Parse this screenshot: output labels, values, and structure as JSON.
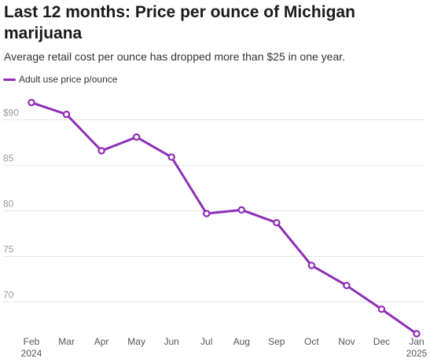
{
  "header": {
    "title": "Last 12 months: Price per ounce of Michigan marijuana",
    "subtitle": "Average retail cost per ounce has dropped more than $25 in one year."
  },
  "colors": {
    "series": "#8e2fb5",
    "grid": "#e6e6e6",
    "tick": "#9a9a9a"
  },
  "chart_data": {
    "type": "line",
    "title": "Last 12 months: Price per ounce of Michigan marijuana",
    "subtitle": "Average retail cost per ounce has dropped more than $25 in one year.",
    "x": [
      "Feb 2024",
      "Mar",
      "Apr",
      "May",
      "Jun",
      "Jul",
      "Aug",
      "Sep",
      "Oct",
      "Nov",
      "Dec",
      "Jan 2025"
    ],
    "x_tick_labels": [
      [
        "Feb",
        "2024"
      ],
      [
        "Mar"
      ],
      [
        "Apr"
      ],
      [
        "May"
      ],
      [
        "Jun"
      ],
      [
        "Jul"
      ],
      [
        "Aug"
      ],
      [
        "Sep"
      ],
      [
        "Oct"
      ],
      [
        "Nov"
      ],
      [
        "Dec"
      ],
      [
        "Jan",
        "2025"
      ]
    ],
    "series": [
      {
        "name": "Adult use price p/ounce",
        "values": [
          91.9,
          90.6,
          86.6,
          88.1,
          85.9,
          79.7,
          80.1,
          78.7,
          74.0,
          71.8,
          69.2,
          66.5
        ]
      }
    ],
    "y_ticks": [
      70,
      75,
      80,
      85,
      90
    ],
    "y_tick_labels": [
      "70",
      "75",
      "80",
      "85",
      "$90"
    ],
    "ylim": [
      66.5,
      93.5
    ],
    "xlabel": "",
    "ylabel": "",
    "grid": true,
    "legend": "top-left",
    "markers": "hollow-circle"
  }
}
